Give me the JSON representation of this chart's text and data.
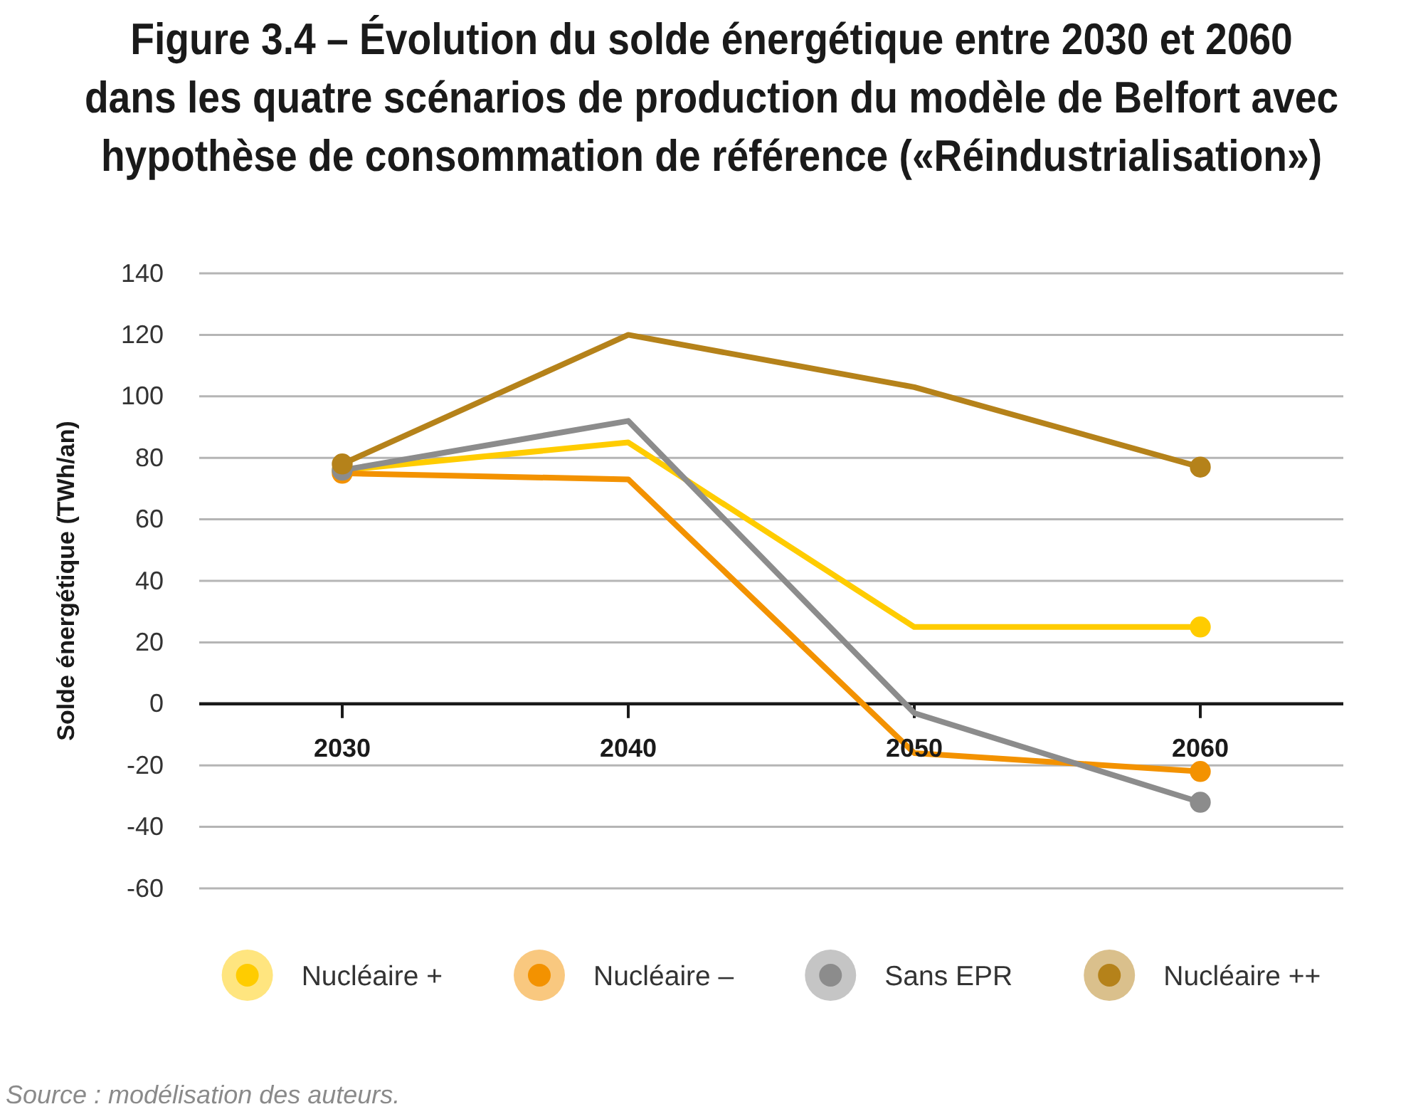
{
  "chart_data": {
    "type": "line",
    "title": "Figure 3.4 – Évolution du solde énergétique entre 2030 et 2060\ndans les quatre scénarios de production du modèle de Belfort avec\nhypothèse de consommation de référence («Réindustrialisation»)",
    "ylabel": "Solde énergétique (TWh/an)",
    "x": [
      2030,
      2040,
      2050,
      2060
    ],
    "xlim": [
      2025,
      2065
    ],
    "xticks": [
      2030,
      2040,
      2050,
      2060
    ],
    "ylim": [
      -60,
      140
    ],
    "yticks": [
      -60,
      -40,
      -20,
      0,
      20,
      40,
      60,
      80,
      100,
      120,
      140
    ],
    "series": [
      {
        "name": "Nucléaire +",
        "color": "#ffcc00",
        "values": [
          76,
          85,
          25,
          25
        ]
      },
      {
        "name": "Nucléaire –",
        "color": "#f39200",
        "values": [
          75,
          73,
          -16,
          -22
        ]
      },
      {
        "name": "Sans EPR",
        "color": "#8c8c8c",
        "values": [
          76,
          92,
          -3,
          -32
        ]
      },
      {
        "name": "Nucléaire ++",
        "color": "#b5821a",
        "values": [
          78,
          120,
          103,
          77
        ]
      }
    ],
    "grid": "y",
    "legend": "bottom",
    "marker": "circle",
    "line_style": "solid",
    "annotations": [
      "Source : modélisation des auteurs."
    ]
  }
}
